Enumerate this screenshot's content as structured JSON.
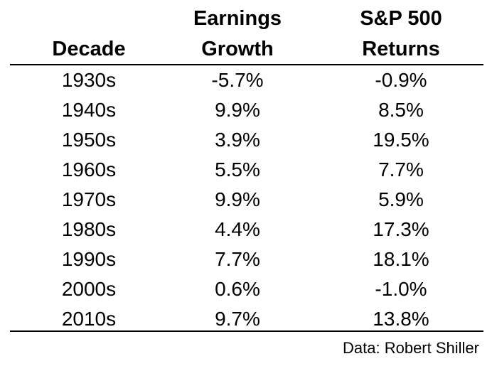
{
  "chart_data": {
    "type": "table",
    "columns": [
      {
        "key": "decade",
        "header_lines": [
          "Decade"
        ]
      },
      {
        "key": "earnings_growth",
        "header_lines": [
          "Earnings",
          "Growth"
        ]
      },
      {
        "key": "sp500_returns",
        "header_lines": [
          "S&P 500",
          "Returns"
        ]
      }
    ],
    "rows": [
      {
        "decade": "1930s",
        "earnings_growth": "-5.7%",
        "sp500_returns": "-0.9%"
      },
      {
        "decade": "1940s",
        "earnings_growth": "9.9%",
        "sp500_returns": "8.5%"
      },
      {
        "decade": "1950s",
        "earnings_growth": "3.9%",
        "sp500_returns": "19.5%"
      },
      {
        "decade": "1960s",
        "earnings_growth": "5.5%",
        "sp500_returns": "7.7%"
      },
      {
        "decade": "1970s",
        "earnings_growth": "9.9%",
        "sp500_returns": "5.9%"
      },
      {
        "decade": "1980s",
        "earnings_growth": "4.4%",
        "sp500_returns": "17.3%"
      },
      {
        "decade": "1990s",
        "earnings_growth": "7.7%",
        "sp500_returns": "18.1%"
      },
      {
        "decade": "2000s",
        "earnings_growth": "0.6%",
        "sp500_returns": "-1.0%"
      },
      {
        "decade": "2010s",
        "earnings_growth": "9.7%",
        "sp500_returns": "13.8%"
      }
    ],
    "source": "Data: Robert Shiller"
  }
}
